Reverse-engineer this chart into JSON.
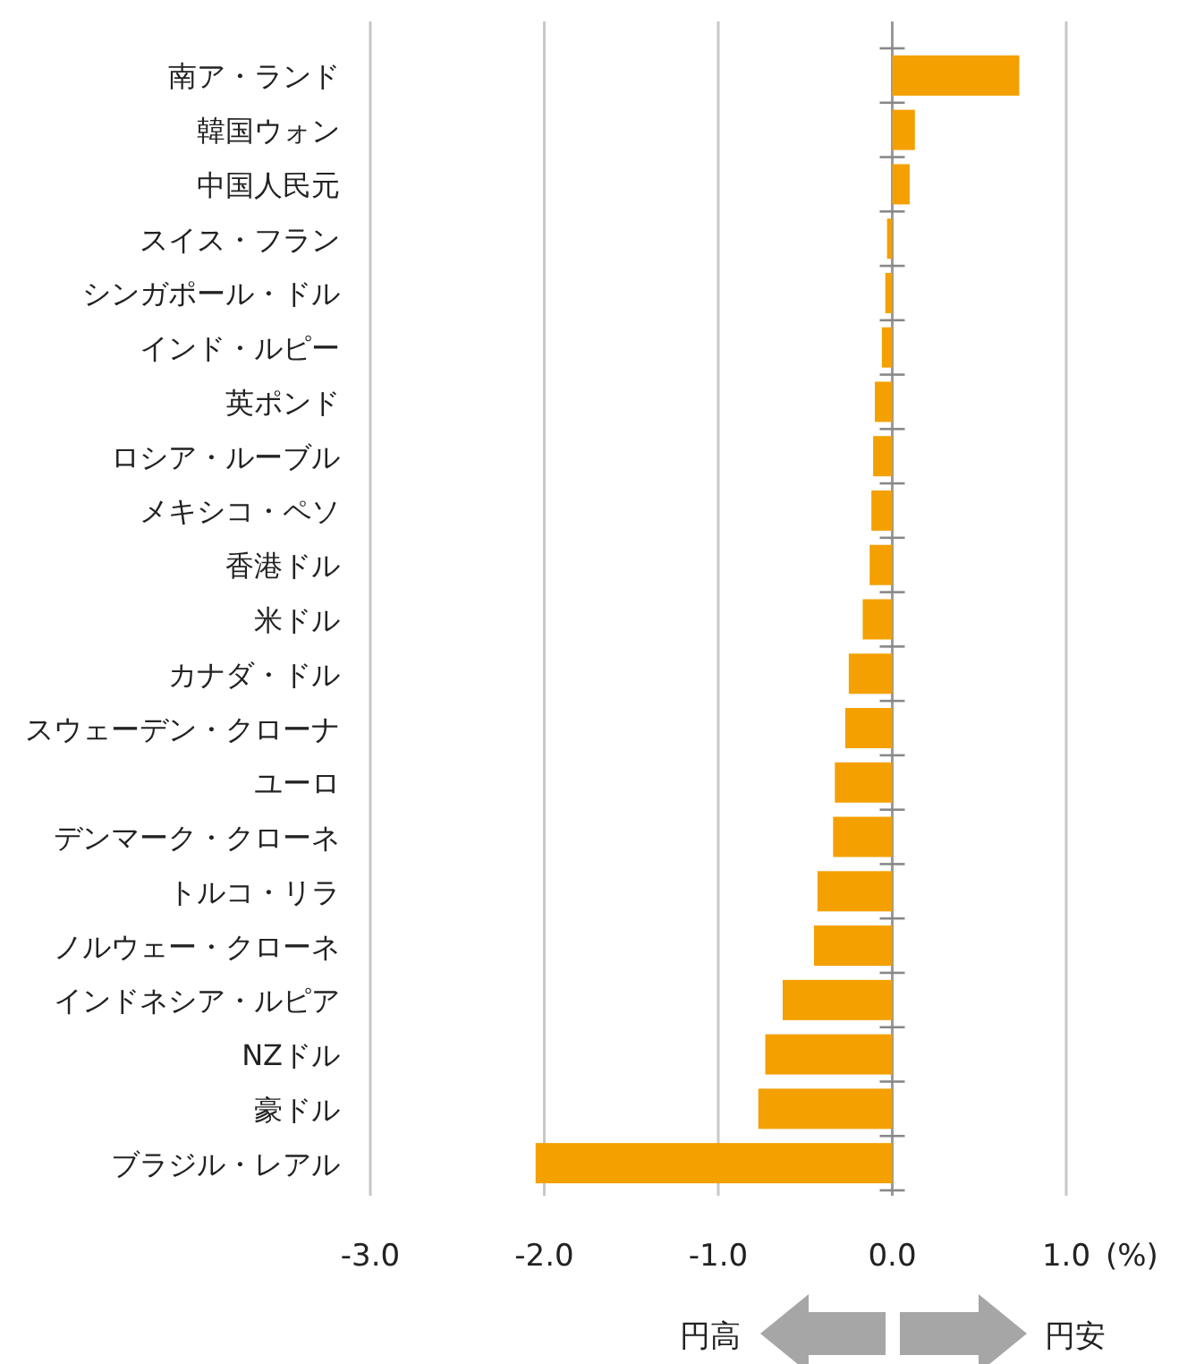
{
  "chart_data": {
    "type": "bar",
    "orientation": "horizontal",
    "categories": [
      "南ア・ランド",
      "韓国ウォン",
      "中国人民元",
      "スイス・フラン",
      "シンガポール・ドル",
      "インド・ルピー",
      "英ポンド",
      "ロシア・ルーブル",
      "メキシコ・ペソ",
      "香港ドル",
      "米ドル",
      "カナダ・ドル",
      "スウェーデン・クローナ",
      "ユーロ",
      "デンマーク・クローネ",
      "トルコ・リラ",
      "ノルウェー・クローネ",
      "インドネシア・ルピア",
      "NZドル",
      "豪ドル",
      "ブラジル・レアル"
    ],
    "values": [
      0.73,
      0.13,
      0.1,
      -0.03,
      -0.04,
      -0.06,
      -0.1,
      -0.11,
      -0.12,
      -0.13,
      -0.17,
      -0.25,
      -0.27,
      -0.33,
      -0.34,
      -0.43,
      -0.45,
      -0.63,
      -0.73,
      -0.77,
      -2.05
    ],
    "color": "#f4a000",
    "xlim": [
      -3,
      1
    ],
    "xticks": [
      {
        "value": -3,
        "label": "-3.0"
      },
      {
        "value": -2,
        "label": "-2.0"
      },
      {
        "value": -1,
        "label": "-1.0"
      },
      {
        "value": 0,
        "label": "0.0"
      },
      {
        "value": 1,
        "label": "1.0"
      }
    ],
    "xlabel": "(%)",
    "grid": "x",
    "annotations": [
      "円高",
      "円安"
    ]
  }
}
